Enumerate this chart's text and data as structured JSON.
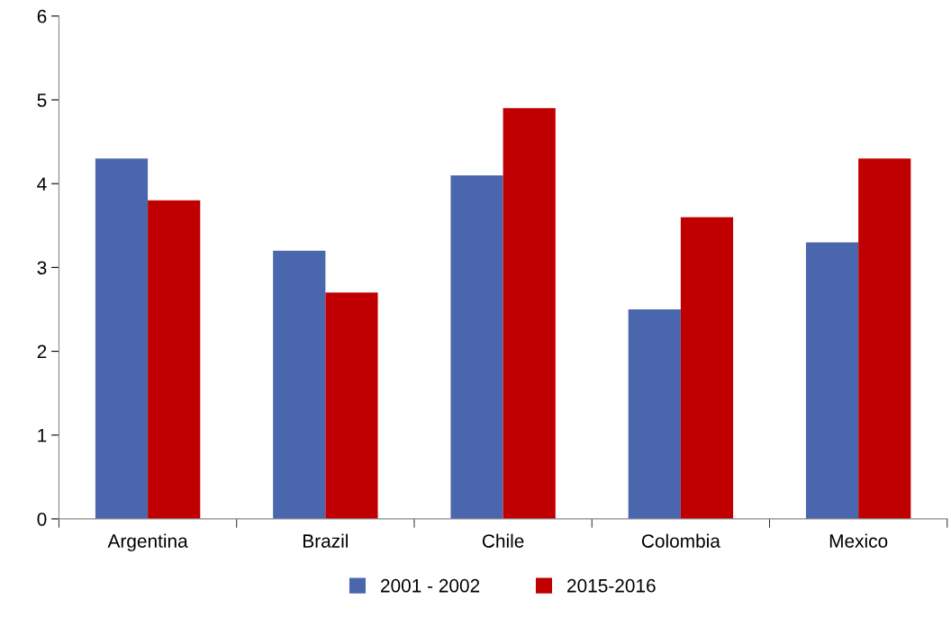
{
  "chart_data": {
    "type": "bar",
    "categories": [
      "Argentina",
      "Brazil",
      "Chile",
      "Colombia",
      "Mexico"
    ],
    "series": [
      {
        "name": "2001 - 2002",
        "color": "#4a67ae",
        "values": [
          4.3,
          3.2,
          4.1,
          2.5,
          3.3
        ]
      },
      {
        "name": "2015-2016",
        "color": "#c00000",
        "values": [
          3.8,
          2.7,
          4.9,
          3.6,
          4.3
        ]
      }
    ],
    "ylim": [
      0,
      6
    ],
    "yticks": [
      0,
      1,
      2,
      3,
      4,
      5,
      6
    ],
    "grid": false,
    "legend": "bottom"
  }
}
